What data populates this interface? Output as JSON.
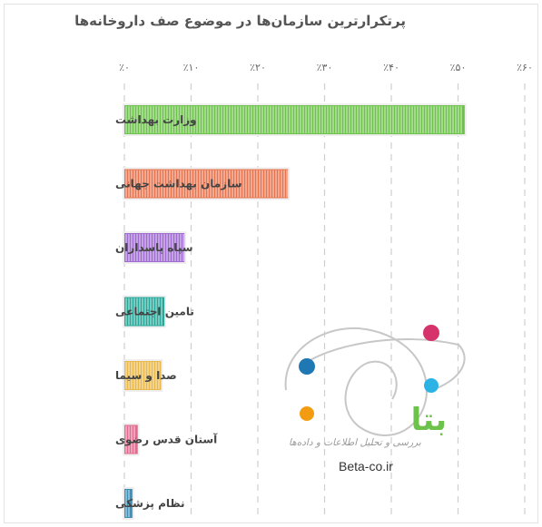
{
  "chart_data": {
    "type": "bar",
    "orientation": "horizontal",
    "title": "پرتکرارترین سازمان‌ها در موضوع صف داروخانه‌ها",
    "categories": [
      "وزارت بهداشت",
      "سازمان بهداشت جهانی",
      "سپاه پاسداران",
      "تامین اجتماعی",
      "صدا و سیما",
      "آستان قدس رضوی",
      "نظام پزشکی"
    ],
    "values": [
      51,
      24.5,
      9,
      6,
      5.5,
      2,
      1.2
    ],
    "tick_labels": [
      "٪۰",
      "٪۱۰",
      "٪۲۰",
      "٪۳۰",
      "٪۴۰",
      "٪۵۰",
      "٪۶۰"
    ],
    "xlim": [
      0,
      60
    ],
    "grid": true,
    "colors": [
      "#6cc24a",
      "#e8744f",
      "#a06bd1",
      "#27a89a",
      "#e9b84a",
      "#e36b8f",
      "#3f8fb8"
    ]
  },
  "watermark": {
    "logo_text": "بتا",
    "tagline": "بررسی و تحلیل اطلاعات و داده‌ها",
    "url": "Beta-co.ir",
    "dot_colors": [
      "#d6336c",
      "#1f78b4",
      "#2bb3e6",
      "#f39c12"
    ],
    "logo_color": "#6cc24a"
  }
}
